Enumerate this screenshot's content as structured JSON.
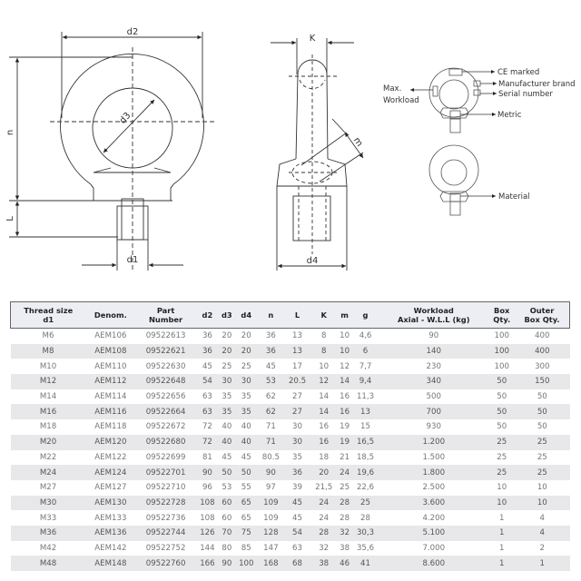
{
  "diagram": {
    "front_labels": {
      "d2": "d2",
      "d3": "d3",
      "n": "n",
      "L": "L",
      "d1": "d1"
    },
    "side_labels": {
      "K": "K",
      "m": "m",
      "d4": "d4"
    },
    "markings": {
      "ce": "CE marked",
      "brand": "Manufacturer brand",
      "serial": "Serial number",
      "metric": "Metric",
      "max": "Max.",
      "workload": "Workload",
      "material": "Material"
    }
  },
  "table": {
    "headers": [
      [
        "Thread size",
        "d1"
      ],
      [
        "Denom.",
        ""
      ],
      [
        "Part",
        "Number"
      ],
      [
        "d2",
        ""
      ],
      [
        "d3",
        ""
      ],
      [
        "d4",
        ""
      ],
      [
        "n",
        ""
      ],
      [
        "L",
        ""
      ],
      [
        "K",
        ""
      ],
      [
        "m",
        ""
      ],
      [
        "g",
        ""
      ],
      [
        "Workload",
        "Axial - W.L.L (kg)"
      ],
      [
        "Box",
        "Qty."
      ],
      [
        "Outer",
        "Box Qty."
      ]
    ],
    "rows": [
      [
        "M6",
        "AEM106",
        "09522613",
        "36",
        "20",
        "20",
        "36",
        "13",
        "8",
        "10",
        "4,6",
        "90",
        "100",
        "400"
      ],
      [
        "M8",
        "AEM108",
        "09522621",
        "36",
        "20",
        "20",
        "36",
        "13",
        "8",
        "10",
        "6",
        "140",
        "100",
        "400"
      ],
      [
        "M10",
        "AEM110",
        "09522630",
        "45",
        "25",
        "25",
        "45",
        "17",
        "10",
        "12",
        "7,7",
        "230",
        "100",
        "300"
      ],
      [
        "M12",
        "AEM112",
        "09522648",
        "54",
        "30",
        "30",
        "53",
        "20.5",
        "12",
        "14",
        "9,4",
        "340",
        "50",
        "150"
      ],
      [
        "M14",
        "AEM114",
        "09522656",
        "63",
        "35",
        "35",
        "62",
        "27",
        "14",
        "16",
        "11,3",
        "500",
        "50",
        "50"
      ],
      [
        "M16",
        "AEM116",
        "09522664",
        "63",
        "35",
        "35",
        "62",
        "27",
        "14",
        "16",
        "13",
        "700",
        "50",
        "50"
      ],
      [
        "M18",
        "AEM118",
        "09522672",
        "72",
        "40",
        "40",
        "71",
        "30",
        "16",
        "19",
        "15",
        "930",
        "50",
        "50"
      ],
      [
        "M20",
        "AEM120",
        "09522680",
        "72",
        "40",
        "40",
        "71",
        "30",
        "16",
        "19",
        "16,5",
        "1.200",
        "25",
        "25"
      ],
      [
        "M22",
        "AEM122",
        "09522699",
        "81",
        "45",
        "45",
        "80.5",
        "35",
        "18",
        "21",
        "18,5",
        "1.500",
        "25",
        "25"
      ],
      [
        "M24",
        "AEM124",
        "09522701",
        "90",
        "50",
        "50",
        "90",
        "36",
        "20",
        "24",
        "19,6",
        "1.800",
        "25",
        "25"
      ],
      [
        "M27",
        "AEM127",
        "09522710",
        "96",
        "53",
        "55",
        "97",
        "39",
        "21,5",
        "25",
        "22,6",
        "2.500",
        "10",
        "10"
      ],
      [
        "M30",
        "AEM130",
        "09522728",
        "108",
        "60",
        "65",
        "109",
        "45",
        "24",
        "28",
        "25",
        "3.600",
        "10",
        "10"
      ],
      [
        "M33",
        "AEM133",
        "09522736",
        "108",
        "60",
        "65",
        "109",
        "45",
        "24",
        "28",
        "28",
        "4.200",
        "1",
        "4"
      ],
      [
        "M36",
        "AEM136",
        "09522744",
        "126",
        "70",
        "75",
        "128",
        "54",
        "28",
        "32",
        "30,3",
        "5.100",
        "1",
        "4"
      ],
      [
        "M42",
        "AEM142",
        "09522752",
        "144",
        "80",
        "85",
        "147",
        "63",
        "32",
        "38",
        "35,6",
        "7.000",
        "1",
        "2"
      ],
      [
        "M48",
        "AEM148",
        "09522760",
        "166",
        "90",
        "100",
        "168",
        "68",
        "38",
        "46",
        "41",
        "8.600",
        "1",
        "1"
      ]
    ]
  }
}
